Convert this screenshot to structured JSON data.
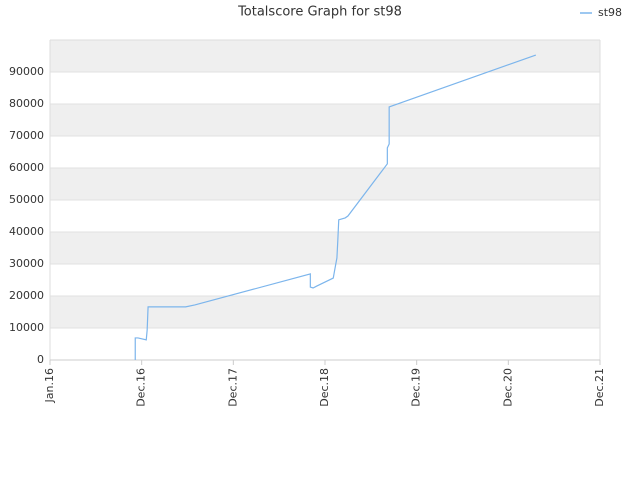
{
  "chart_data": {
    "type": "line",
    "title": "Totalscore Graph for st98",
    "x": [
      0.93,
      0.93,
      0.96,
      1.05,
      1.06,
      1.07,
      1.48,
      1.58,
      2.84,
      2.84,
      2.87,
      2.91,
      3.09,
      3.11,
      3.13,
      3.14,
      3.15,
      3.22,
      3.25,
      3.68,
      3.68,
      3.7,
      3.7,
      5.3
    ],
    "series": [
      {
        "name": "st98",
        "color": "#7cb5ec",
        "values": [
          0,
          6900,
          6900,
          6300,
          9400,
          16600,
          16600,
          17200,
          26900,
          22800,
          22500,
          23100,
          25600,
          28800,
          31900,
          37500,
          43800,
          44400,
          45000,
          61300,
          66300,
          67500,
          79100,
          95300
        ]
      }
    ],
    "xlim": [
      0,
      6
    ],
    "xticks": [
      {
        "value": 0,
        "label": "Jan.16"
      },
      {
        "value": 1,
        "label": "Dec.16"
      },
      {
        "value": 2,
        "label": "Dec.17"
      },
      {
        "value": 3,
        "label": "Dec.18"
      },
      {
        "value": 4,
        "label": "Dec.19"
      },
      {
        "value": 5,
        "label": "Dec.20"
      },
      {
        "value": 6,
        "label": "Dec.21"
      }
    ],
    "ylim": [
      0,
      100000
    ],
    "yticks": [
      0,
      10000,
      20000,
      30000,
      40000,
      50000,
      60000,
      70000,
      80000,
      90000
    ],
    "grid": true,
    "legend": "top-right"
  }
}
